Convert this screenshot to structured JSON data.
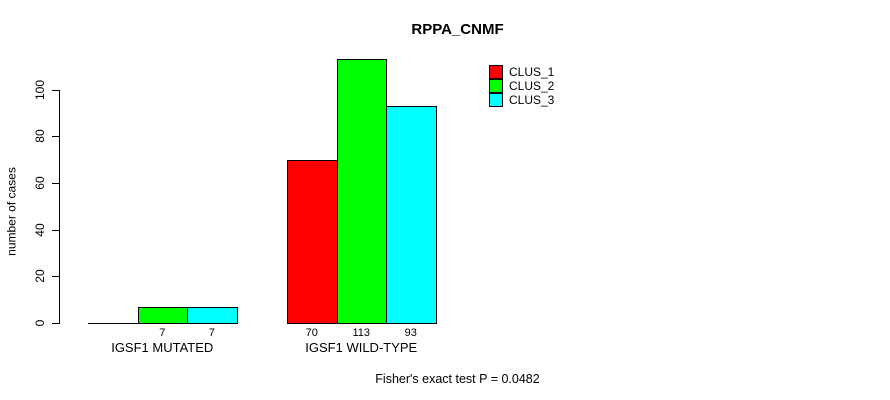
{
  "chart_data": {
    "type": "bar",
    "title": "RPPA_CNMF",
    "xlabel": "",
    "ylabel": "number of cases",
    "ylim": [
      0,
      117
    ],
    "yticks": [
      0,
      20,
      40,
      60,
      80,
      100
    ],
    "grid": false,
    "legend_position": "top-right",
    "categories": [
      "IGSF1 MUTATED",
      "IGSF1 WILD-TYPE"
    ],
    "series": [
      {
        "name": "CLUS_1",
        "color": "#ff0000",
        "values": [
          0,
          70
        ]
      },
      {
        "name": "CLUS_2",
        "color": "#00ff00",
        "values": [
          7,
          113
        ]
      },
      {
        "name": "CLUS_3",
        "color": "#00ffff",
        "values": [
          7,
          93
        ]
      }
    ],
    "bar_labels": [
      [
        "",
        "7",
        "7"
      ],
      [
        "70",
        "113",
        "93"
      ]
    ],
    "footnote": "Fisher's exact test P = 0.0482"
  }
}
